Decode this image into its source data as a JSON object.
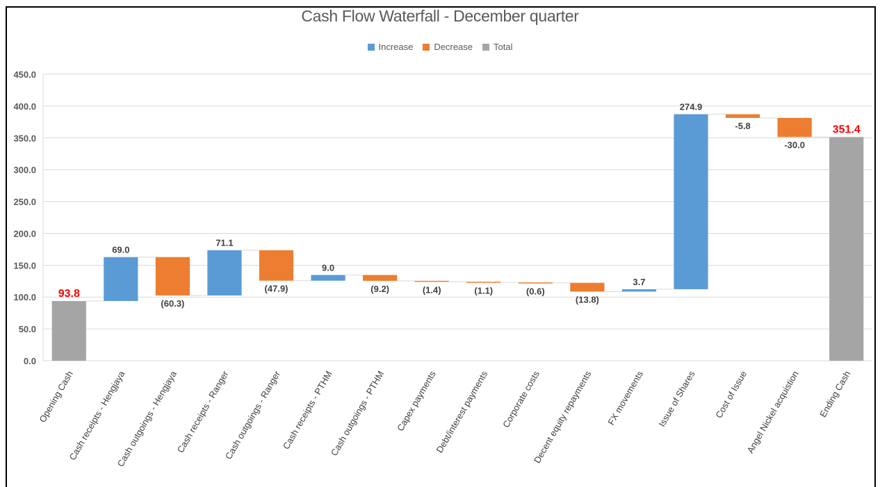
{
  "chart_data": {
    "type": "bar",
    "subtype": "waterfall",
    "title": "Cash Flow Waterfall - December quarter",
    "legend": {
      "placement": "top-center",
      "entries": [
        {
          "name": "Increase",
          "color": "#5b9bd5"
        },
        {
          "name": "Decrease",
          "color": "#ed7d31"
        },
        {
          "name": "Total",
          "color": "#a5a5a5"
        }
      ]
    },
    "ylim": [
      0,
      450
    ],
    "yticks": [
      "0.0",
      "50.0",
      "100.0",
      "150.0",
      "200.0",
      "250.0",
      "300.0",
      "350.0",
      "400.0",
      "450.0"
    ],
    "grid": true,
    "categories": [
      "Opening Cash",
      "Cash receipts - Hengjaya",
      "Cash outgoings - Hengjaya",
      "Cash receipts - Ranger",
      "Cash outgoings - Ranger",
      "Cash receipts - PTHM",
      "Cash outgoings - PTHM",
      "Capex payments",
      "Debt/interest payments",
      "Corporate costs",
      "Decent equity repayments",
      "FX movements",
      "Issue of Shares",
      "Cost of Issue",
      "Angel Nickel acquistion",
      "Ending Cash"
    ],
    "kinds": [
      "total",
      "increase",
      "decrease",
      "increase",
      "decrease",
      "increase",
      "decrease",
      "decrease",
      "decrease",
      "decrease",
      "decrease",
      "increase",
      "increase",
      "decrease",
      "decrease",
      "total"
    ],
    "values": [
      93.8,
      69.0,
      -60.3,
      71.1,
      -47.9,
      9.0,
      -9.2,
      -1.4,
      -1.1,
      -0.6,
      -13.8,
      3.7,
      274.9,
      -5.8,
      -30.0,
      351.4
    ],
    "data_labels": [
      "93.8",
      "69.0",
      "(60.3)",
      "71.1",
      "(47.9)",
      "9.0",
      "(9.2)",
      "(1.4)",
      "(1.1)",
      "(0.6)",
      "(13.8)",
      "3.7",
      "274.9",
      "-5.8",
      "-30.0",
      "351.4"
    ]
  }
}
